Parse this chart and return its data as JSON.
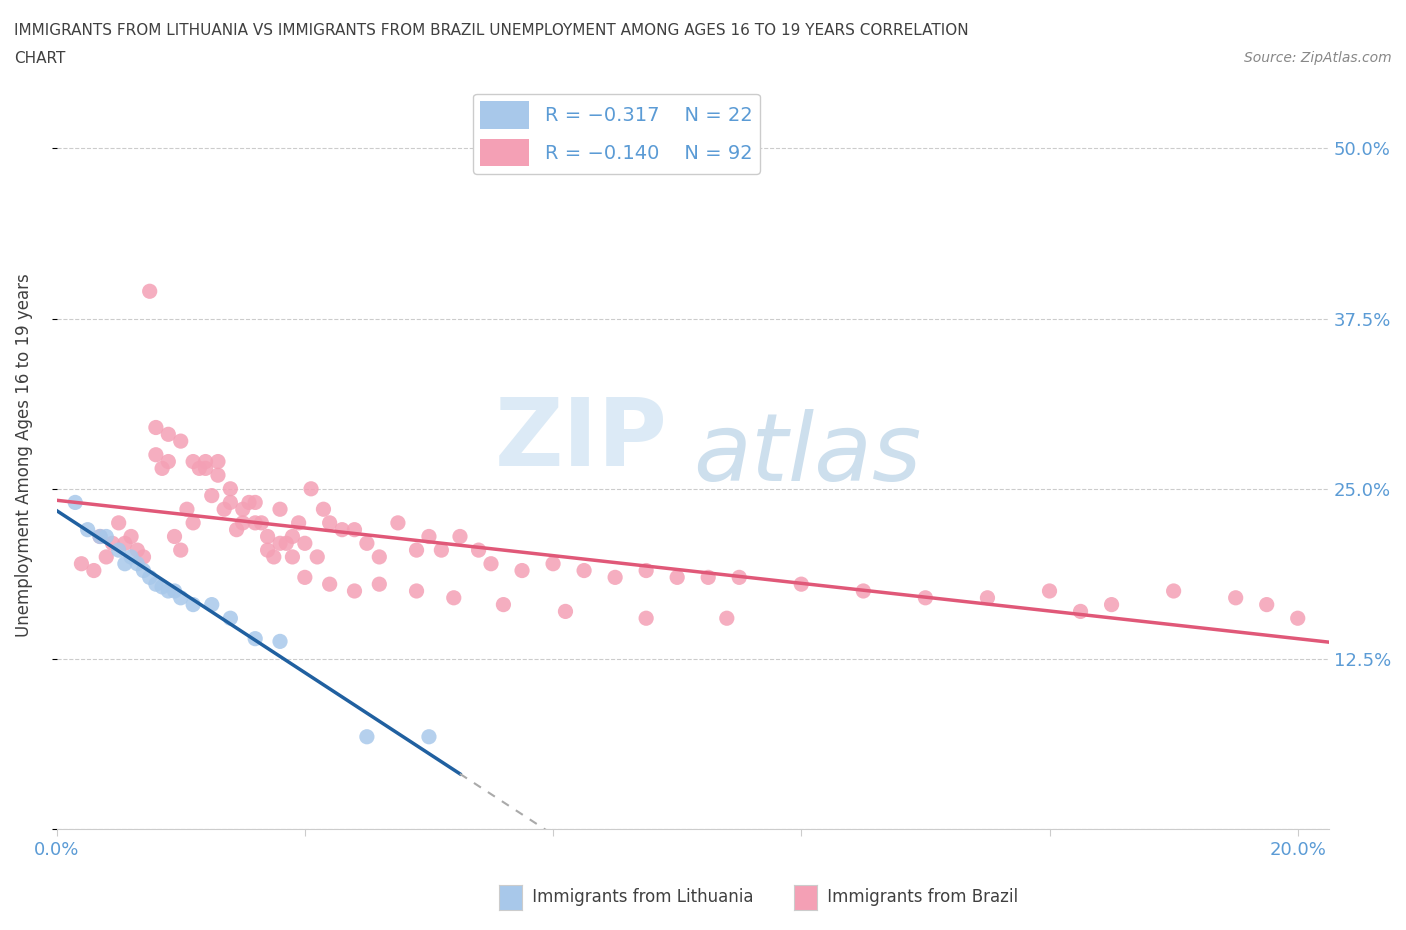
{
  "title_line1": "IMMIGRANTS FROM LITHUANIA VS IMMIGRANTS FROM BRAZIL UNEMPLOYMENT AMONG AGES 16 TO 19 YEARS CORRELATION",
  "title_line2": "CHART",
  "source": "Source: ZipAtlas.com",
  "ylabel": "Unemployment Among Ages 16 to 19 years",
  "xlim": [
    0.0,
    0.205
  ],
  "ylim": [
    0.0,
    0.55
  ],
  "color_lithuania": "#a8c8ea",
  "color_brazil": "#f4a0b5",
  "color_line_lithuania": "#2060a0",
  "color_line_brazil": "#e05878",
  "watermark_top": "ZIP",
  "watermark_bottom": "atlas",
  "grid_color": "#cccccc",
  "background_color": "#ffffff",
  "title_color": "#404040",
  "axis_label_color": "#404040",
  "tick_color": "#5b9bd5",
  "lithuania_x": [
    0.003,
    0.005,
    0.007,
    0.008,
    0.01,
    0.011,
    0.012,
    0.013,
    0.014,
    0.015,
    0.016,
    0.017,
    0.018,
    0.019,
    0.02,
    0.022,
    0.025,
    0.028,
    0.032,
    0.036,
    0.05,
    0.06
  ],
  "lithuania_y": [
    0.24,
    0.22,
    0.215,
    0.215,
    0.205,
    0.195,
    0.2,
    0.195,
    0.19,
    0.185,
    0.18,
    0.178,
    0.175,
    0.175,
    0.17,
    0.165,
    0.165,
    0.155,
    0.14,
    0.138,
    0.068,
    0.068
  ],
  "brazil_x": [
    0.004,
    0.006,
    0.007,
    0.008,
    0.009,
    0.01,
    0.011,
    0.012,
    0.013,
    0.014,
    0.015,
    0.016,
    0.017,
    0.018,
    0.019,
    0.02,
    0.021,
    0.022,
    0.023,
    0.024,
    0.025,
    0.026,
    0.027,
    0.028,
    0.029,
    0.03,
    0.031,
    0.032,
    0.033,
    0.034,
    0.035,
    0.036,
    0.037,
    0.038,
    0.039,
    0.04,
    0.041,
    0.042,
    0.043,
    0.044,
    0.046,
    0.048,
    0.05,
    0.052,
    0.055,
    0.058,
    0.06,
    0.062,
    0.065,
    0.068,
    0.07,
    0.075,
    0.08,
    0.085,
    0.09,
    0.095,
    0.1,
    0.105,
    0.11,
    0.12,
    0.13,
    0.14,
    0.15,
    0.16,
    0.165,
    0.17,
    0.18,
    0.19,
    0.195,
    0.2,
    0.016,
    0.018,
    0.02,
    0.022,
    0.024,
    0.026,
    0.028,
    0.03,
    0.032,
    0.034,
    0.036,
    0.038,
    0.04,
    0.044,
    0.048,
    0.052,
    0.058,
    0.064,
    0.072,
    0.082,
    0.095,
    0.108
  ],
  "brazil_y": [
    0.195,
    0.19,
    0.215,
    0.2,
    0.21,
    0.225,
    0.21,
    0.215,
    0.205,
    0.2,
    0.395,
    0.275,
    0.265,
    0.27,
    0.215,
    0.205,
    0.235,
    0.225,
    0.265,
    0.27,
    0.245,
    0.26,
    0.235,
    0.25,
    0.22,
    0.225,
    0.24,
    0.24,
    0.225,
    0.215,
    0.2,
    0.235,
    0.21,
    0.215,
    0.225,
    0.21,
    0.25,
    0.2,
    0.235,
    0.225,
    0.22,
    0.22,
    0.21,
    0.2,
    0.225,
    0.205,
    0.215,
    0.205,
    0.215,
    0.205,
    0.195,
    0.19,
    0.195,
    0.19,
    0.185,
    0.19,
    0.185,
    0.185,
    0.185,
    0.18,
    0.175,
    0.17,
    0.17,
    0.175,
    0.16,
    0.165,
    0.175,
    0.17,
    0.165,
    0.155,
    0.295,
    0.29,
    0.285,
    0.27,
    0.265,
    0.27,
    0.24,
    0.235,
    0.225,
    0.205,
    0.21,
    0.2,
    0.185,
    0.18,
    0.175,
    0.18,
    0.175,
    0.17,
    0.165,
    0.16,
    0.155,
    0.155
  ]
}
